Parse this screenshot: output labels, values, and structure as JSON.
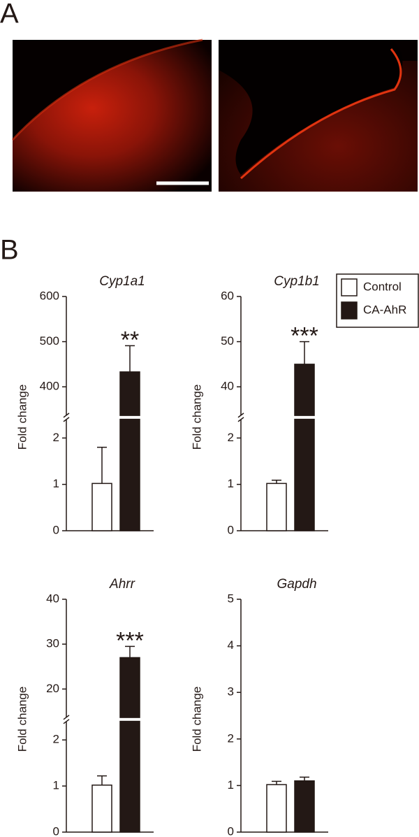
{
  "panels": [
    "A",
    "B"
  ],
  "legend": [
    {
      "name": "Control",
      "color": "#ffffff"
    },
    {
      "name": "CA-AhR",
      "color": "#231815"
    }
  ],
  "chart_data": [
    {
      "type": "bar",
      "title": "Cyp1a1",
      "ylabel": "Fold change",
      "values": [
        1.02,
        433
      ],
      "errors": [
        0.78,
        58
      ],
      "annotation": "**",
      "ylim": [
        0,
        600
      ],
      "ybreak": [
        2.4,
        337
      ],
      "yticks": [
        0,
        1,
        2,
        400,
        500,
        600
      ]
    },
    {
      "type": "bar",
      "title": "Cyp1b1",
      "ylabel": "Fold change",
      "values": [
        1.02,
        45
      ],
      "errors": [
        0.07,
        5
      ],
      "annotation": "***",
      "ylim": [
        0,
        60
      ],
      "ybreak": [
        2.4,
        33.7
      ],
      "yticks": [
        0,
        1,
        2,
        40,
        50,
        60
      ]
    },
    {
      "type": "bar",
      "title": "Ahrr",
      "ylabel": "Fold change",
      "values": [
        1.02,
        27
      ],
      "errors": [
        0.2,
        2.5
      ],
      "annotation": "***",
      "ylim": [
        0,
        40
      ],
      "ybreak": [
        2.4,
        13.7
      ],
      "yticks": [
        0,
        1,
        2,
        20,
        30,
        40
      ]
    },
    {
      "type": "bar",
      "title": "Gapdh",
      "ylabel": "Fold change",
      "values": [
        1.02,
        1.1
      ],
      "errors": [
        0.07,
        0.08
      ],
      "ylim": [
        0,
        5
      ],
      "yticks": [
        0,
        1,
        2,
        3,
        4,
        5
      ]
    }
  ]
}
